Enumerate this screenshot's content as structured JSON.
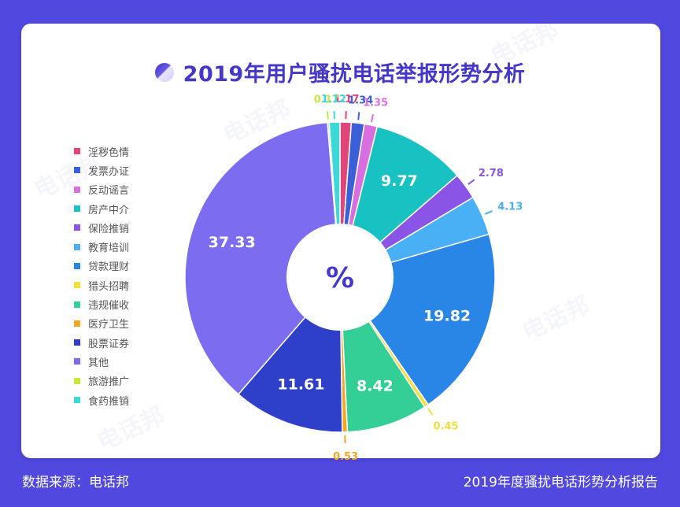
{
  "title": "2019年用户骚扰电话举报形势分析",
  "center_label": "%",
  "footer": {
    "source": "数据来源：电话邦",
    "report": "2019年度骚扰电话形势分析报告"
  },
  "watermark": "电话邦",
  "chart_data": {
    "type": "pie",
    "title": "2019年用户骚扰电话举报形势分析",
    "unit": "%",
    "legend_position": "left",
    "slices": [
      {
        "label": "淫秽色情",
        "value": 1.17,
        "color": "#e2457a"
      },
      {
        "label": "发票办证",
        "value": 1.34,
        "color": "#3a5fd6"
      },
      {
        "label": "反动谣言",
        "value": 1.35,
        "color": "#d86fe0"
      },
      {
        "label": "房产中介",
        "value": 9.77,
        "color": "#18c2c2"
      },
      {
        "label": "保险推销",
        "value": 2.78,
        "color": "#8a55e6"
      },
      {
        "label": "教育培训",
        "value": 4.13,
        "color": "#4ab0f5"
      },
      {
        "label": "贷款理财",
        "value": 19.82,
        "color": "#2a86e6"
      },
      {
        "label": "猎头招聘",
        "value": 0.45,
        "color": "#f2df3a"
      },
      {
        "label": "违规催收",
        "value": 8.42,
        "color": "#34cf96"
      },
      {
        "label": "医疗卫生",
        "value": 0.53,
        "color": "#f5a623"
      },
      {
        "label": "股票证券",
        "value": 11.61,
        "color": "#2e3fc9"
      },
      {
        "label": "其他",
        "value": 37.33,
        "color": "#7b6cf0"
      },
      {
        "label": "旅游推广",
        "value": 0.17,
        "color": "#c6e83a"
      },
      {
        "label": "食药推销",
        "value": 1.12,
        "color": "#3cd9d9"
      }
    ]
  }
}
